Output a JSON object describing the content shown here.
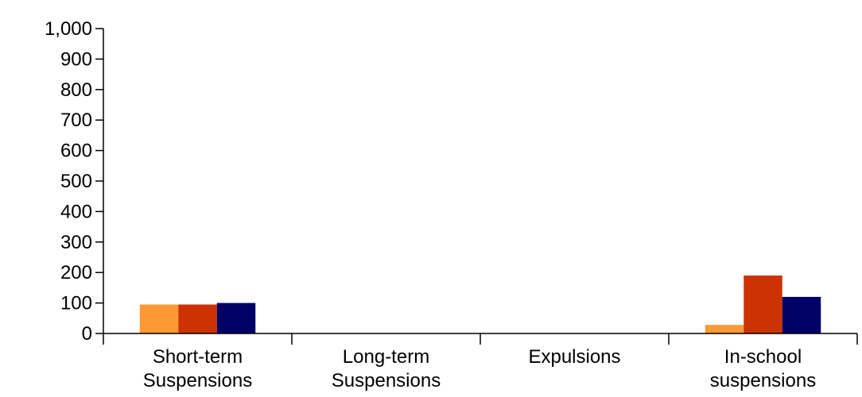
{
  "chart_data": {
    "type": "bar",
    "title": "",
    "xlabel": "",
    "ylabel": "",
    "ylim": [
      0,
      1000
    ],
    "yticks": [
      0,
      100,
      200,
      300,
      400,
      500,
      600,
      700,
      800,
      900,
      1000
    ],
    "ytick_labels": [
      "0",
      "100",
      "200",
      "300",
      "400",
      "500",
      "600",
      "700",
      "800",
      "900",
      "1,000"
    ],
    "categories": [
      [
        "Short-term",
        "Suspensions"
      ],
      [
        "Long-term",
        "Suspensions"
      ],
      [
        "Expulsions"
      ],
      [
        "In-school",
        "suspensions"
      ]
    ],
    "series": [
      {
        "color": "#FF9933",
        "values": [
          95,
          0,
          0,
          28
        ]
      },
      {
        "color": "#CC3300",
        "values": [
          95,
          0,
          0,
          190
        ]
      },
      {
        "color": "#000066",
        "values": [
          100,
          0,
          0,
          120
        ]
      }
    ],
    "grid": false,
    "legend": "none"
  }
}
